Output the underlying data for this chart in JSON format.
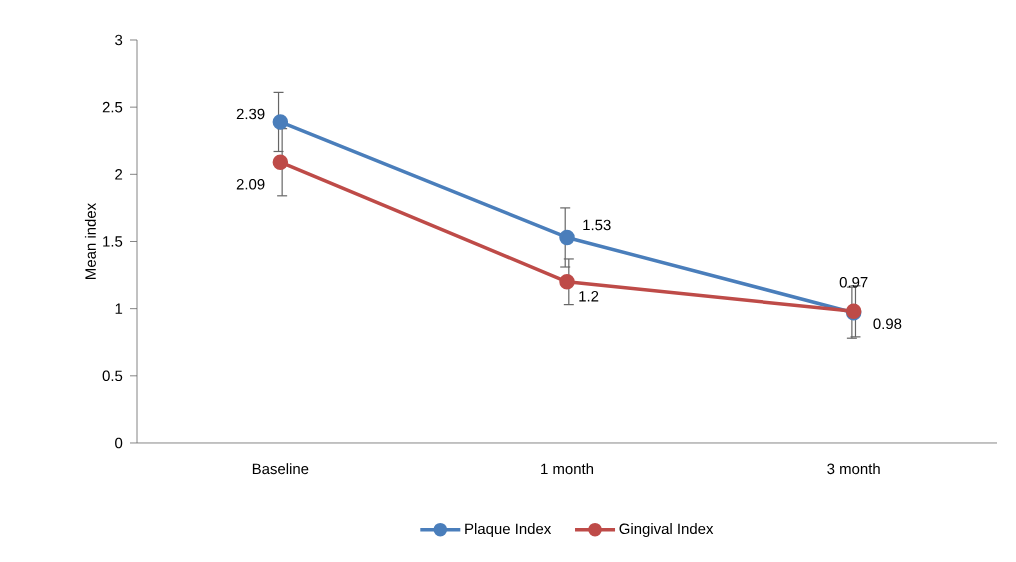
{
  "chart_data": {
    "type": "line",
    "ylabel": "Mean index",
    "categories": [
      "Baseline",
      "1 month",
      "3 month"
    ],
    "series": [
      {
        "name": "Plaque Index",
        "color": "#4a7ebb",
        "values": [
          2.39,
          1.53,
          0.97
        ],
        "errors": [
          0.22,
          0.22,
          0.19
        ]
      },
      {
        "name": "Gingival Index",
        "color": "#be4b48",
        "values": [
          2.09,
          1.2,
          0.98
        ],
        "errors": [
          0.25,
          0.17,
          0.19
        ]
      }
    ],
    "ylim": [
      0,
      3
    ],
    "yticks": [
      0,
      0.5,
      1,
      1.5,
      2,
      2.5,
      3
    ],
    "legend": "bottom",
    "marker": "circle",
    "line_style": "solid",
    "data_labels": true
  }
}
